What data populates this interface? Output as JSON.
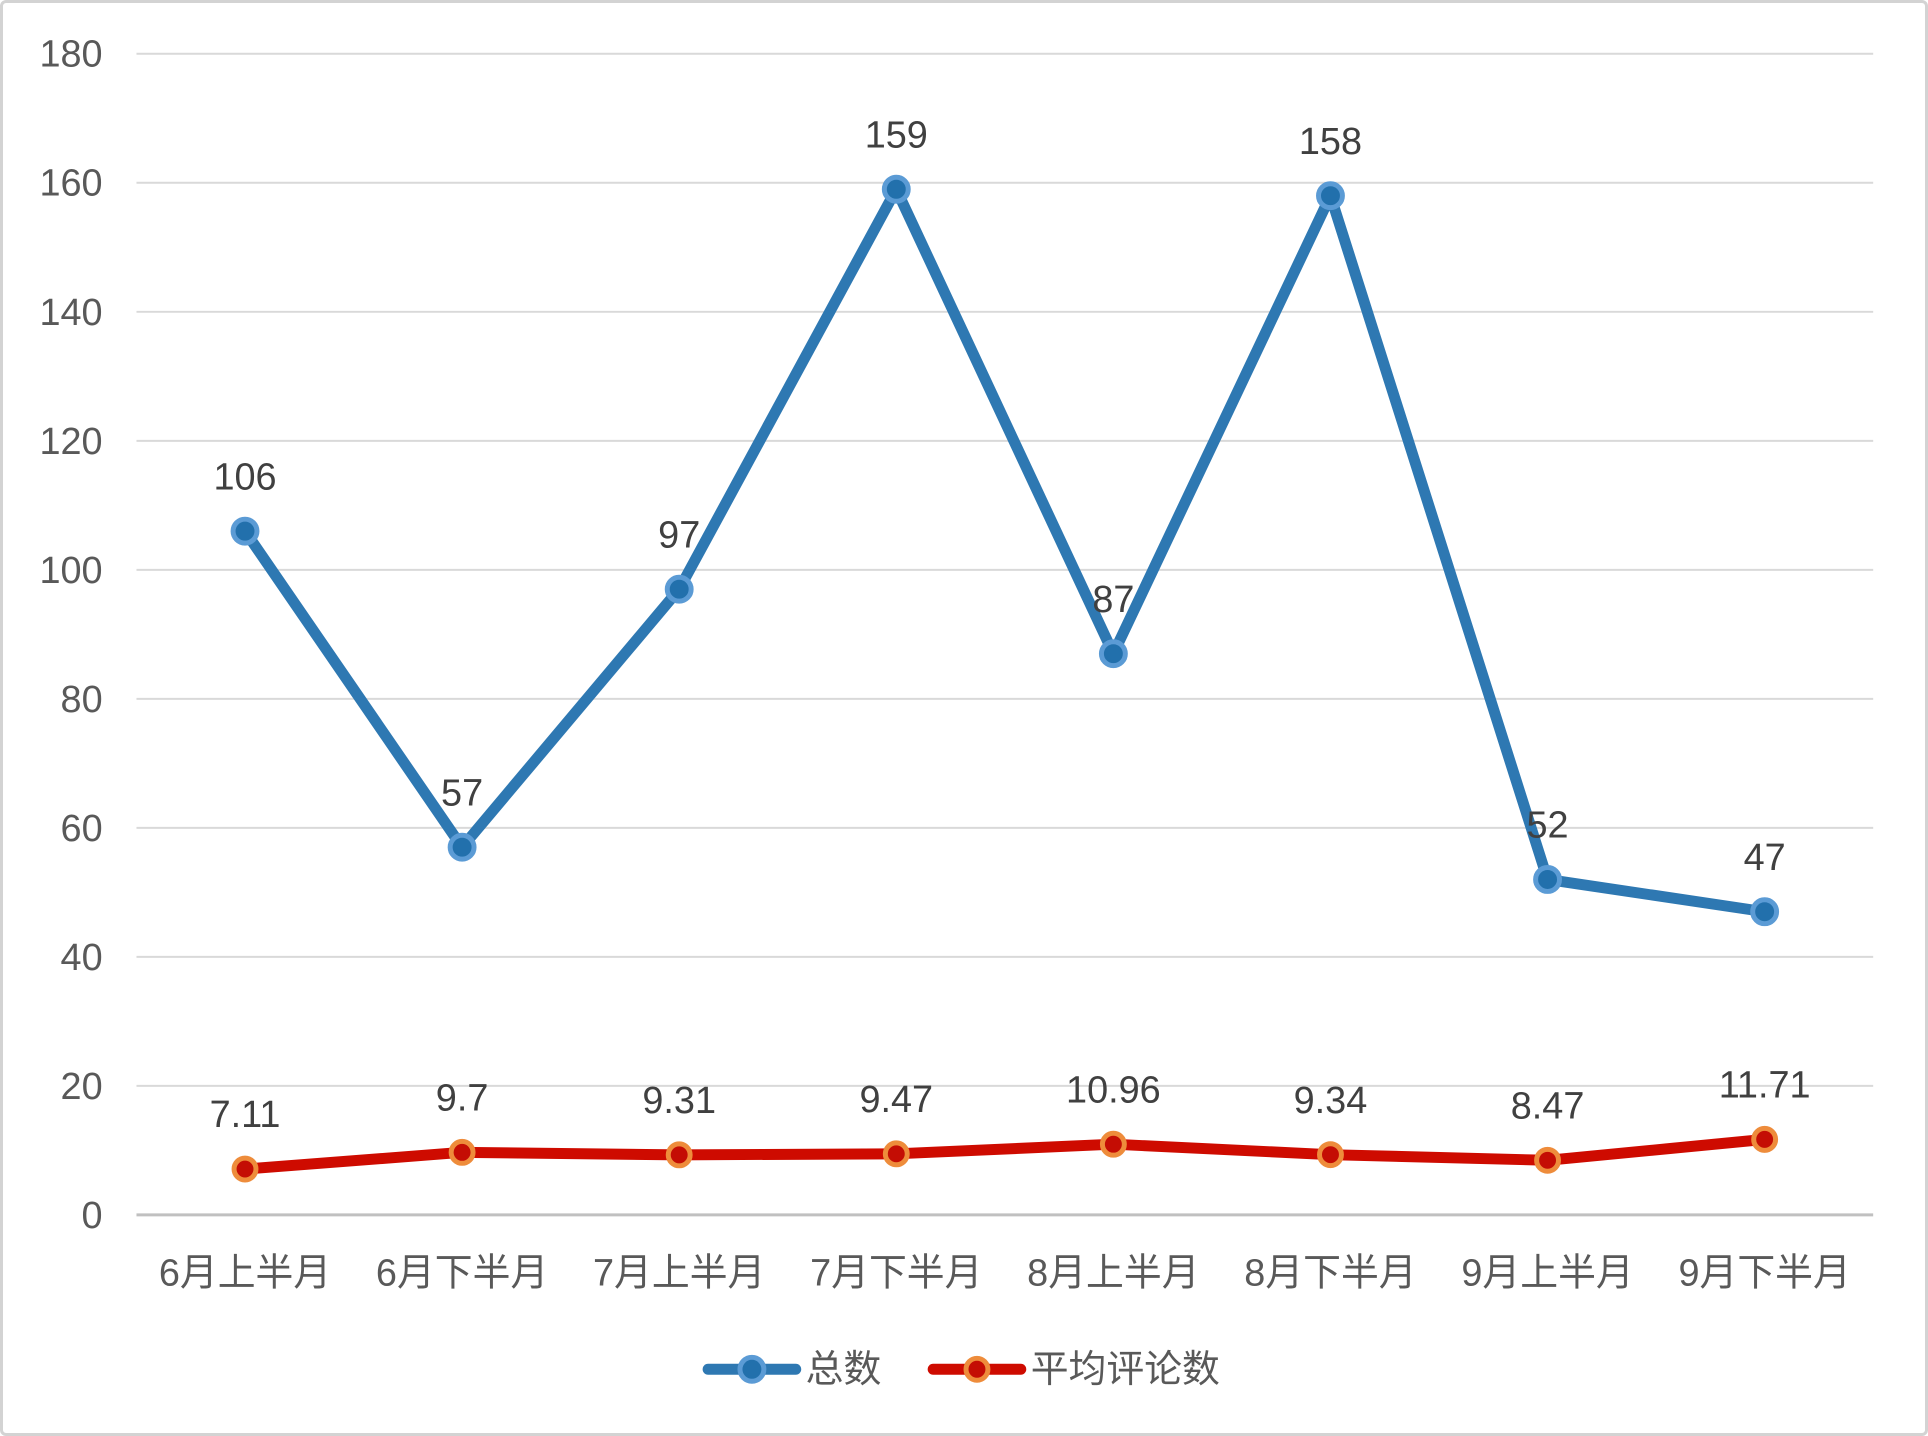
{
  "chart_data": {
    "type": "line",
    "title": "",
    "xlabel": "",
    "ylabel": "",
    "categories": [
      "6月上半月",
      "6月下半月",
      "7月上半月",
      "7月下半月",
      "8月上半月",
      "8月下半月",
      "9月上半月",
      "9月下半月"
    ],
    "series": [
      {
        "name": "总数",
        "values": [
          106,
          57,
          97,
          159,
          87,
          158,
          52,
          47
        ],
        "labels": [
          "106",
          "57",
          "97",
          "159",
          "87",
          "158",
          "52",
          "47"
        ],
        "line_color": "#2E78B2",
        "marker_fill": "#2270AC",
        "marker_edge": "#5B9BD5"
      },
      {
        "name": "平均评论数",
        "values": [
          7.11,
          9.7,
          9.31,
          9.47,
          10.96,
          9.34,
          8.47,
          11.71
        ],
        "labels": [
          "7.11",
          "9.7",
          "9.31",
          "9.47",
          "10.96",
          "9.34",
          "8.47",
          "11.71"
        ],
        "line_color": "#CE0B00",
        "marker_fill": "#C40D04",
        "marker_edge": "#EE8C3B"
      }
    ],
    "ylim": [
      0,
      180
    ],
    "y_ticks": [
      180,
      160,
      140,
      120,
      100,
      80,
      60,
      40,
      20,
      0
    ],
    "grid": "horizontal",
    "legend_position": "bottom",
    "colors": {
      "gridline": "#D9D9D9",
      "axis_line": "#C0C0C0",
      "tick_label": "#595959",
      "data_label": "#404040",
      "legend_label": "#595959",
      "background": "#FFFFFF",
      "border": "#D3D3D3"
    }
  }
}
